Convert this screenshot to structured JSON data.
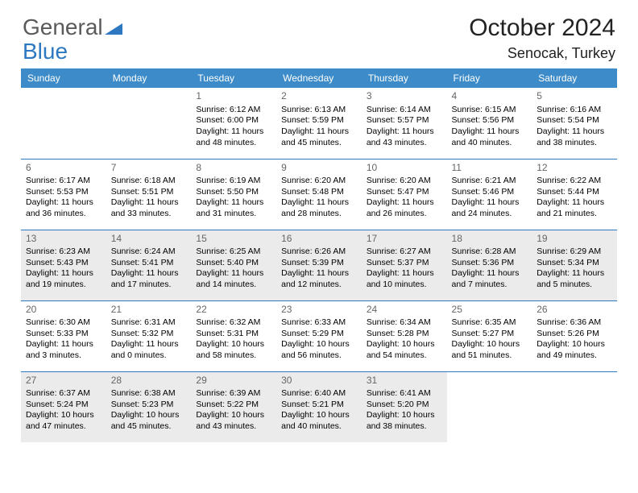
{
  "logo": {
    "part1": "General",
    "part2": "Blue",
    "tri_color": "#2d78c0"
  },
  "title": {
    "month": "October 2024",
    "location": "Senocak, Turkey"
  },
  "dayHeaders": [
    "Sunday",
    "Monday",
    "Tuesday",
    "Wednesday",
    "Thursday",
    "Friday",
    "Saturday"
  ],
  "colors": {
    "header_bg": "#3d8cc9",
    "header_text": "#ffffff",
    "row_border": "#2d78c0",
    "shade_bg": "#ebebeb",
    "body_text": "#222222",
    "daynum_text": "#666666"
  },
  "weeks": [
    {
      "shaded": false,
      "days": [
        null,
        null,
        {
          "n": "1",
          "sr": "6:12 AM",
          "ss": "6:00 PM",
          "dl": "11 hours and 48 minutes."
        },
        {
          "n": "2",
          "sr": "6:13 AM",
          "ss": "5:59 PM",
          "dl": "11 hours and 45 minutes."
        },
        {
          "n": "3",
          "sr": "6:14 AM",
          "ss": "5:57 PM",
          "dl": "11 hours and 43 minutes."
        },
        {
          "n": "4",
          "sr": "6:15 AM",
          "ss": "5:56 PM",
          "dl": "11 hours and 40 minutes."
        },
        {
          "n": "5",
          "sr": "6:16 AM",
          "ss": "5:54 PM",
          "dl": "11 hours and 38 minutes."
        }
      ]
    },
    {
      "shaded": false,
      "days": [
        {
          "n": "6",
          "sr": "6:17 AM",
          "ss": "5:53 PM",
          "dl": "11 hours and 36 minutes."
        },
        {
          "n": "7",
          "sr": "6:18 AM",
          "ss": "5:51 PM",
          "dl": "11 hours and 33 minutes."
        },
        {
          "n": "8",
          "sr": "6:19 AM",
          "ss": "5:50 PM",
          "dl": "11 hours and 31 minutes."
        },
        {
          "n": "9",
          "sr": "6:20 AM",
          "ss": "5:48 PM",
          "dl": "11 hours and 28 minutes."
        },
        {
          "n": "10",
          "sr": "6:20 AM",
          "ss": "5:47 PM",
          "dl": "11 hours and 26 minutes."
        },
        {
          "n": "11",
          "sr": "6:21 AM",
          "ss": "5:46 PM",
          "dl": "11 hours and 24 minutes."
        },
        {
          "n": "12",
          "sr": "6:22 AM",
          "ss": "5:44 PM",
          "dl": "11 hours and 21 minutes."
        }
      ]
    },
    {
      "shaded": true,
      "days": [
        {
          "n": "13",
          "sr": "6:23 AM",
          "ss": "5:43 PM",
          "dl": "11 hours and 19 minutes."
        },
        {
          "n": "14",
          "sr": "6:24 AM",
          "ss": "5:41 PM",
          "dl": "11 hours and 17 minutes."
        },
        {
          "n": "15",
          "sr": "6:25 AM",
          "ss": "5:40 PM",
          "dl": "11 hours and 14 minutes."
        },
        {
          "n": "16",
          "sr": "6:26 AM",
          "ss": "5:39 PM",
          "dl": "11 hours and 12 minutes."
        },
        {
          "n": "17",
          "sr": "6:27 AM",
          "ss": "5:37 PM",
          "dl": "11 hours and 10 minutes."
        },
        {
          "n": "18",
          "sr": "6:28 AM",
          "ss": "5:36 PM",
          "dl": "11 hours and 7 minutes."
        },
        {
          "n": "19",
          "sr": "6:29 AM",
          "ss": "5:34 PM",
          "dl": "11 hours and 5 minutes."
        }
      ]
    },
    {
      "shaded": false,
      "days": [
        {
          "n": "20",
          "sr": "6:30 AM",
          "ss": "5:33 PM",
          "dl": "11 hours and 3 minutes."
        },
        {
          "n": "21",
          "sr": "6:31 AM",
          "ss": "5:32 PM",
          "dl": "11 hours and 0 minutes."
        },
        {
          "n": "22",
          "sr": "6:32 AM",
          "ss": "5:31 PM",
          "dl": "10 hours and 58 minutes."
        },
        {
          "n": "23",
          "sr": "6:33 AM",
          "ss": "5:29 PM",
          "dl": "10 hours and 56 minutes."
        },
        {
          "n": "24",
          "sr": "6:34 AM",
          "ss": "5:28 PM",
          "dl": "10 hours and 54 minutes."
        },
        {
          "n": "25",
          "sr": "6:35 AM",
          "ss": "5:27 PM",
          "dl": "10 hours and 51 minutes."
        },
        {
          "n": "26",
          "sr": "6:36 AM",
          "ss": "5:26 PM",
          "dl": "10 hours and 49 minutes."
        }
      ]
    },
    {
      "shaded": true,
      "days": [
        {
          "n": "27",
          "sr": "6:37 AM",
          "ss": "5:24 PM",
          "dl": "10 hours and 47 minutes."
        },
        {
          "n": "28",
          "sr": "6:38 AM",
          "ss": "5:23 PM",
          "dl": "10 hours and 45 minutes."
        },
        {
          "n": "29",
          "sr": "6:39 AM",
          "ss": "5:22 PM",
          "dl": "10 hours and 43 minutes."
        },
        {
          "n": "30",
          "sr": "6:40 AM",
          "ss": "5:21 PM",
          "dl": "10 hours and 40 minutes."
        },
        {
          "n": "31",
          "sr": "6:41 AM",
          "ss": "5:20 PM",
          "dl": "10 hours and 38 minutes."
        },
        null,
        null
      ]
    }
  ],
  "labels": {
    "sunrise": "Sunrise:",
    "sunset": "Sunset:",
    "daylight": "Daylight:"
  }
}
